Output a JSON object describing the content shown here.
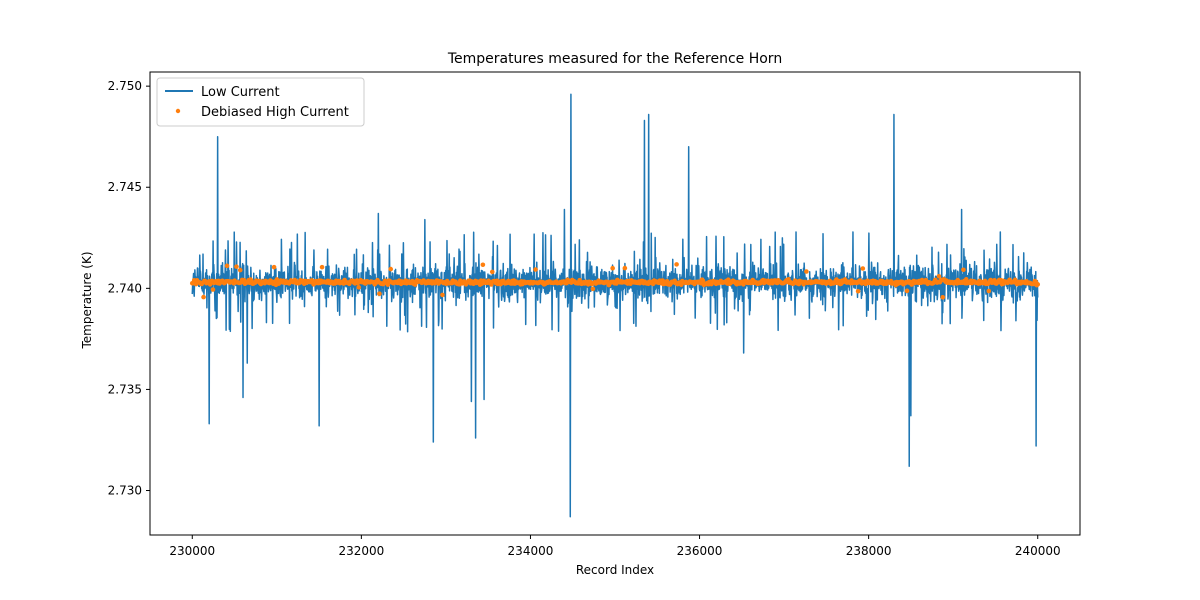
{
  "chart_data": {
    "type": "line",
    "title": "Temperatures measured for the Reference Horn",
    "xlabel": "Record Index",
    "ylabel": "Temperature (K)",
    "xlim": [
      229500,
      240500
    ],
    "ylim": [
      2.7278,
      2.7507
    ],
    "xticks": [
      230000,
      232000,
      234000,
      236000,
      238000,
      240000
    ],
    "yticks": [
      2.73,
      2.735,
      2.74,
      2.745,
      2.75
    ],
    "grid": false,
    "legend_position": "top-left",
    "series": [
      {
        "name": "Low Current",
        "kind": "line",
        "color": "#1f77b4",
        "baseline": 2.7403,
        "band_low": 2.7393,
        "band_high": 2.7412,
        "spikes": [
          {
            "x": 230300,
            "y": 2.7475
          },
          {
            "x": 230200,
            "y": 2.7333
          },
          {
            "x": 230600,
            "y": 2.7346
          },
          {
            "x": 230650,
            "y": 2.7363
          },
          {
            "x": 231500,
            "y": 2.7332
          },
          {
            "x": 232200,
            "y": 2.7437
          },
          {
            "x": 232750,
            "y": 2.7434
          },
          {
            "x": 232850,
            "y": 2.7324
          },
          {
            "x": 233300,
            "y": 2.7344
          },
          {
            "x": 233350,
            "y": 2.7326
          },
          {
            "x": 233450,
            "y": 2.7345
          },
          {
            "x": 234400,
            "y": 2.7439
          },
          {
            "x": 234480,
            "y": 2.7496
          },
          {
            "x": 234470,
            "y": 2.7287
          },
          {
            "x": 235350,
            "y": 2.7483
          },
          {
            "x": 235400,
            "y": 2.7486
          },
          {
            "x": 235870,
            "y": 2.747
          },
          {
            "x": 236520,
            "y": 2.7368
          },
          {
            "x": 238300,
            "y": 2.7486
          },
          {
            "x": 238480,
            "y": 2.7312
          },
          {
            "x": 238500,
            "y": 2.7337
          },
          {
            "x": 239100,
            "y": 2.7439
          },
          {
            "x": 239980,
            "y": 2.7322
          }
        ]
      },
      {
        "name": "Debiased High Current",
        "kind": "scatter",
        "color": "#ff7f0e",
        "center": 2.7403,
        "spread": 0.0003
      }
    ]
  }
}
